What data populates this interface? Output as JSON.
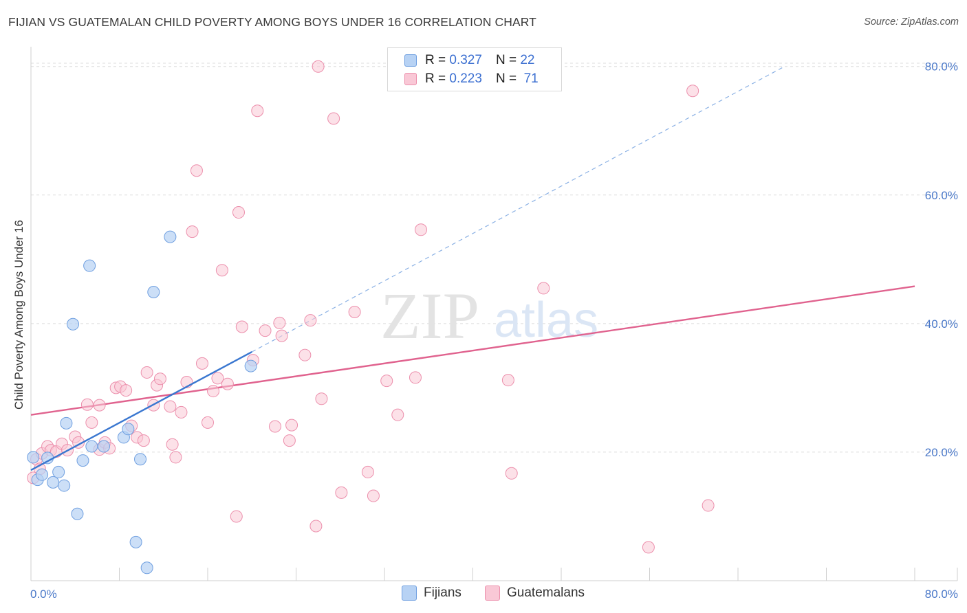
{
  "title": "FIJIAN VS GUATEMALAN CHILD POVERTY AMONG BOYS UNDER 16 CORRELATION CHART",
  "source": "Source: ZipAtlas.com",
  "watermark": {
    "zip": "ZIP",
    "atlas": "atlas"
  },
  "legend_top": [
    {
      "r_label": "R =",
      "r_value": "0.327",
      "n_label": "N =",
      "n_value": "22"
    },
    {
      "r_label": "R =",
      "r_value": "0.223",
      "n_label": "N =",
      "n_value": "71"
    }
  ],
  "legend_bottom": [
    {
      "label": "Fijians"
    },
    {
      "label": "Guatemalans"
    }
  ],
  "colors": {
    "fijian_fill": "#b7d2f4",
    "fijian_stroke": "#6f9fe0",
    "fijian_line": "#3a77d0",
    "guatemalan_fill": "#f9c8d6",
    "guatemalan_stroke": "#ec8fac",
    "guatemalan_line": "#e0628e",
    "tick_text": "#4a78c8",
    "grid": "#dcdcdc"
  },
  "chart_data": {
    "type": "scatter",
    "title": "FIJIAN VS GUATEMALAN CHILD POVERTY AMONG BOYS UNDER 16 CORRELATION CHART",
    "xlabel": "",
    "ylabel": "Child Poverty Among Boys Under 16",
    "xlim": [
      0,
      80
    ],
    "ylim": [
      0,
      82
    ],
    "x_ticks": [
      "0.0%",
      "80.0%"
    ],
    "y_ticks": [
      "20.0%",
      "40.0%",
      "60.0%",
      "80.0%"
    ],
    "y_tick_values": [
      20,
      40,
      60,
      80
    ],
    "grid": "horizontal dashed",
    "legend_placement": "top-center",
    "series": [
      {
        "name": "Fijians",
        "points": [
          [
            0.2,
            19.2
          ],
          [
            0.6,
            15.7
          ],
          [
            1.0,
            16.5
          ],
          [
            1.5,
            19.1
          ],
          [
            2.0,
            15.3
          ],
          [
            2.5,
            16.9
          ],
          [
            3.0,
            14.8
          ],
          [
            3.2,
            24.5
          ],
          [
            3.8,
            39.9
          ],
          [
            4.2,
            10.4
          ],
          [
            4.7,
            18.7
          ],
          [
            5.3,
            49.0
          ],
          [
            5.5,
            20.9
          ],
          [
            6.6,
            20.9
          ],
          [
            8.4,
            22.3
          ],
          [
            8.8,
            23.6
          ],
          [
            9.5,
            6.0
          ],
          [
            9.9,
            18.9
          ],
          [
            10.5,
            2.0
          ],
          [
            11.1,
            44.9
          ],
          [
            12.6,
            53.5
          ],
          [
            19.9,
            33.4
          ]
        ],
        "trend": {
          "x": [
            0.0,
            20.0
          ],
          "y": [
            17.2,
            35.6
          ],
          "dashed_extension": {
            "x": [
              20.0,
              68.0
            ],
            "y": [
              35.6,
              79.8
            ]
          }
        }
      },
      {
        "name": "Guatemalans",
        "points": [
          [
            0.2,
            16.0
          ],
          [
            0.5,
            18.9
          ],
          [
            0.8,
            17.4
          ],
          [
            1.0,
            19.8
          ],
          [
            1.5,
            20.9
          ],
          [
            1.8,
            20.3
          ],
          [
            2.3,
            20.1
          ],
          [
            2.8,
            21.3
          ],
          [
            3.3,
            20.3
          ],
          [
            4.0,
            22.4
          ],
          [
            4.3,
            21.5
          ],
          [
            5.1,
            27.4
          ],
          [
            5.5,
            24.6
          ],
          [
            6.2,
            27.3
          ],
          [
            6.2,
            20.4
          ],
          [
            6.7,
            21.5
          ],
          [
            7.1,
            20.6
          ],
          [
            7.7,
            30.0
          ],
          [
            8.1,
            30.2
          ],
          [
            8.6,
            29.6
          ],
          [
            9.1,
            24.1
          ],
          [
            9.6,
            22.3
          ],
          [
            10.2,
            21.8
          ],
          [
            10.5,
            32.4
          ],
          [
            11.1,
            27.3
          ],
          [
            11.4,
            30.4
          ],
          [
            11.7,
            31.4
          ],
          [
            12.6,
            27.1
          ],
          [
            12.8,
            21.2
          ],
          [
            13.1,
            19.2
          ],
          [
            13.6,
            26.2
          ],
          [
            14.1,
            30.9
          ],
          [
            14.6,
            54.3
          ],
          [
            15.0,
            63.8
          ],
          [
            15.5,
            33.8
          ],
          [
            16.0,
            24.6
          ],
          [
            16.5,
            29.5
          ],
          [
            16.9,
            31.5
          ],
          [
            17.3,
            48.3
          ],
          [
            17.8,
            30.6
          ],
          [
            18.6,
            10.0
          ],
          [
            18.8,
            57.3
          ],
          [
            19.1,
            39.5
          ],
          [
            20.1,
            34.3
          ],
          [
            20.5,
            73.1
          ],
          [
            21.2,
            38.9
          ],
          [
            22.1,
            24.0
          ],
          [
            22.5,
            40.1
          ],
          [
            22.7,
            38.1
          ],
          [
            23.4,
            21.8
          ],
          [
            23.6,
            24.2
          ],
          [
            24.8,
            35.1
          ],
          [
            25.3,
            40.5
          ],
          [
            25.8,
            8.5
          ],
          [
            26.0,
            80.0
          ],
          [
            26.3,
            28.3
          ],
          [
            27.4,
            71.9
          ],
          [
            28.1,
            13.7
          ],
          [
            29.3,
            41.8
          ],
          [
            30.5,
            16.9
          ],
          [
            31.0,
            13.2
          ],
          [
            32.2,
            31.1
          ],
          [
            33.2,
            25.8
          ],
          [
            34.8,
            31.6
          ],
          [
            35.3,
            54.6
          ],
          [
            43.2,
            31.2
          ],
          [
            43.5,
            16.7
          ],
          [
            46.4,
            45.5
          ],
          [
            55.9,
            5.2
          ],
          [
            59.9,
            76.2
          ],
          [
            61.3,
            11.7
          ]
        ],
        "trend": {
          "x": [
            0.0,
            80.0
          ],
          "y": [
            25.8,
            45.8
          ]
        }
      }
    ]
  }
}
